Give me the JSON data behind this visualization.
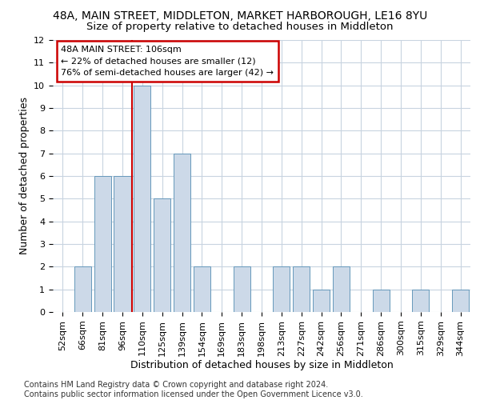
{
  "title": "48A, MAIN STREET, MIDDLETON, MARKET HARBOROUGH, LE16 8YU",
  "subtitle": "Size of property relative to detached houses in Middleton",
  "xlabel": "Distribution of detached houses by size in Middleton",
  "ylabel": "Number of detached properties",
  "categories": [
    "52sqm",
    "66sqm",
    "81sqm",
    "96sqm",
    "110sqm",
    "125sqm",
    "139sqm",
    "154sqm",
    "169sqm",
    "183sqm",
    "198sqm",
    "213sqm",
    "227sqm",
    "242sqm",
    "256sqm",
    "271sqm",
    "286sqm",
    "300sqm",
    "315sqm",
    "329sqm",
    "344sqm"
  ],
  "values": [
    0,
    2,
    6,
    6,
    10,
    5,
    7,
    2,
    0,
    2,
    0,
    2,
    2,
    1,
    2,
    0,
    1,
    0,
    1,
    0,
    1
  ],
  "bar_color": "#ccd9e8",
  "bar_edge_color": "#6699bb",
  "vline_x": 3.5,
  "vline_color": "#cc0000",
  "annotation_line1": "48A MAIN STREET: 106sqm",
  "annotation_line2": "← 22% of detached houses are smaller (12)",
  "annotation_line3": "76% of semi-detached houses are larger (42) →",
  "annotation_box_color": "#cc0000",
  "ylim": [
    0,
    12
  ],
  "yticks": [
    0,
    1,
    2,
    3,
    4,
    5,
    6,
    7,
    8,
    9,
    10,
    11,
    12
  ],
  "footnote": "Contains HM Land Registry data © Crown copyright and database right 2024.\nContains public sector information licensed under the Open Government Licence v3.0.",
  "title_fontsize": 10,
  "subtitle_fontsize": 9.5,
  "xlabel_fontsize": 9,
  "ylabel_fontsize": 9,
  "tick_fontsize": 8,
  "annot_fontsize": 8,
  "footnote_fontsize": 7
}
